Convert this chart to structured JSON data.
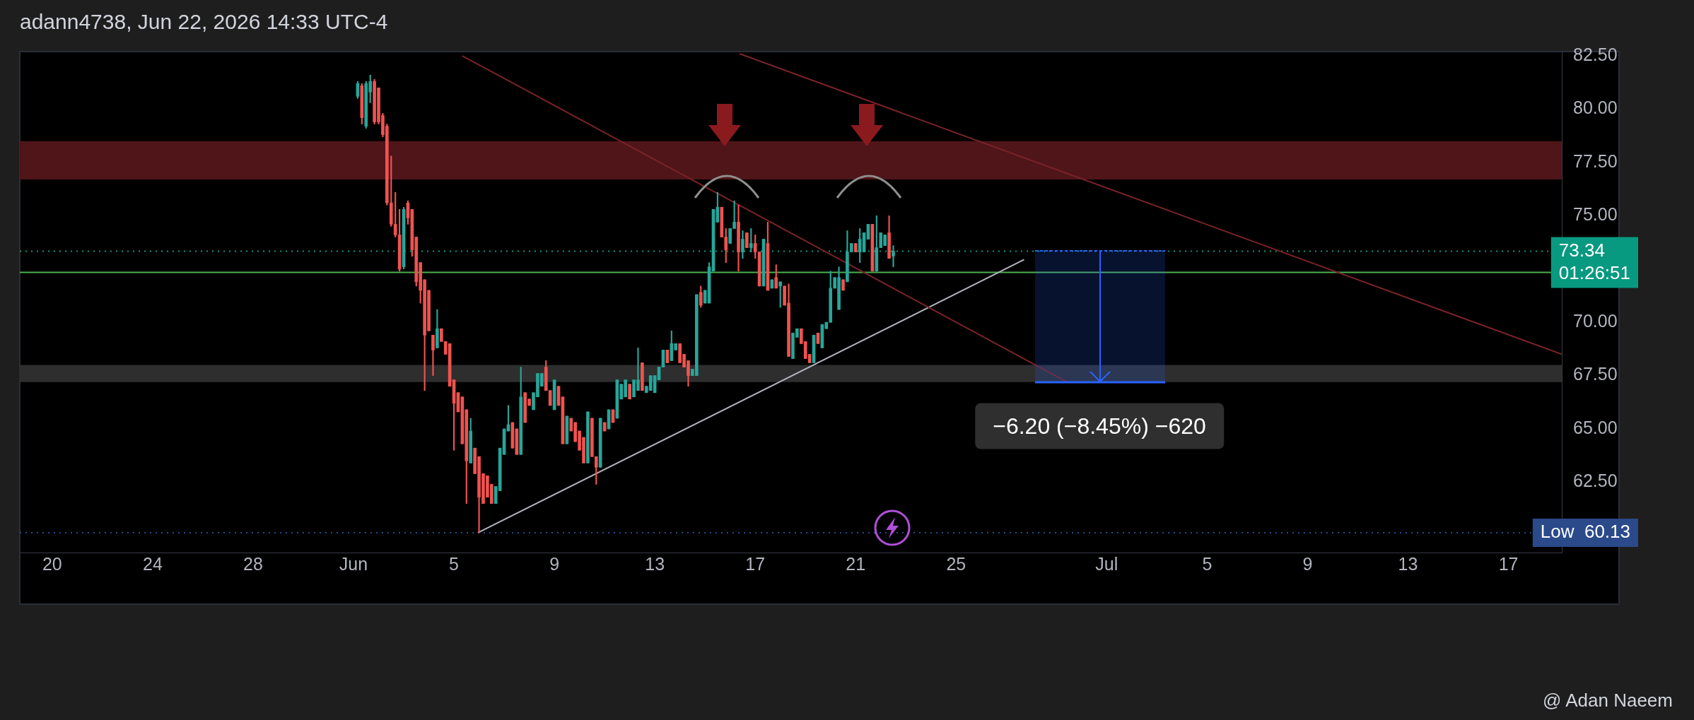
{
  "chart_data": {
    "type": "candlestick",
    "title": "adann4738, Jun 22, 2026 14:33 UTC-4",
    "xlim": [
      "2026-05-18T17:00",
      "2026-07-19T03:00"
    ],
    "xticks": [
      {
        "value": "2026-05-20",
        "label": "20"
      },
      {
        "value": "2026-05-24",
        "label": "24"
      },
      {
        "value": "2026-05-28",
        "label": "28"
      },
      {
        "value": "2026-06-01",
        "label": "Jun"
      },
      {
        "value": "2026-06-05",
        "label": "5"
      },
      {
        "value": "2026-06-09",
        "label": "9"
      },
      {
        "value": "2026-06-13",
        "label": "13"
      },
      {
        "value": "2026-06-17",
        "label": "17"
      },
      {
        "value": "2026-06-21",
        "label": "21"
      },
      {
        "value": "2026-06-25",
        "label": "25"
      },
      {
        "value": "2026-07-01",
        "label": "Jul"
      },
      {
        "value": "2026-07-05",
        "label": "5"
      },
      {
        "value": "2026-07-09",
        "label": "9"
      },
      {
        "value": "2026-07-13",
        "label": "13"
      },
      {
        "value": "2026-07-17",
        "label": "17"
      }
    ],
    "ylim": [
      59.2,
      82.7
    ],
    "yticks": [
      {
        "value": 62.5,
        "label": "62.50"
      },
      {
        "value": 65,
        "label": "65.00"
      },
      {
        "value": 67.5,
        "label": "67.50"
      },
      {
        "value": 70,
        "label": "70.00"
      },
      {
        "value": 75,
        "label": "75.00"
      },
      {
        "value": 77.5,
        "label": "77.50"
      },
      {
        "value": 80,
        "label": "80.00"
      },
      {
        "value": 82.5,
        "label": "82.50"
      }
    ],
    "bands": [
      {
        "axis": "y",
        "from": 76.7,
        "to": 78.5,
        "color": "#4f1519"
      },
      {
        "axis": "y",
        "from": 67.2,
        "to": 68.0,
        "color": "#2e2e2e"
      }
    ],
    "ref_lines": [
      {
        "axis": "y",
        "value": 73.34,
        "label": "73.34\n01:26:51",
        "color": "#089981",
        "line_style": "dotted"
      },
      {
        "axis": "y",
        "value": 72.34,
        "color": "#4caf50",
        "line_style": "solid"
      },
      {
        "axis": "y",
        "value": 60.13,
        "label": "Low  60.13",
        "color": "#2a4a8a",
        "line_style": "dotted"
      }
    ],
    "annotations": [
      "−6.20 (−8.45%) −620",
      "@ Adan Naeem"
    ],
    "series": [
      {
        "type": "line",
        "x": [
          "2026-06-05T08:00",
          "2026-06-29T10:00"
        ],
        "values": [
          82.5,
          67.2
        ],
        "color": "#7a2328"
      },
      {
        "type": "line",
        "x": [
          "2026-06-16T09:00",
          "2026-07-19T03:00"
        ],
        "values": [
          82.6,
          68.5
        ],
        "color": "#7a2328"
      },
      {
        "type": "line",
        "x": [
          "2026-06-05T23:00",
          "2026-06-27T17:00"
        ],
        "values": [
          60.13,
          72.94
        ],
        "color": "#b2b5be"
      },
      {
        "type": "candlestick",
        "x": [
          "2026-06-01T04:00",
          "2026-06-01T08:00",
          "2026-06-01T12:00",
          "2026-06-01T16:00",
          "2026-06-01T20:00",
          "2026-06-02T00:00",
          "2026-06-02T04:00",
          "2026-06-02T08:00",
          "2026-06-02T12:00",
          "2026-06-02T16:00",
          "2026-06-02T20:00",
          "2026-06-03T00:00",
          "2026-06-03T04:00",
          "2026-06-03T08:00",
          "2026-06-03T12:00",
          "2026-06-03T16:00",
          "2026-06-03T20:00",
          "2026-06-04T00:00",
          "2026-06-04T04:00",
          "2026-06-04T08:00",
          "2026-06-04T12:00",
          "2026-06-04T16:00",
          "2026-06-04T20:00",
          "2026-06-05T00:00",
          "2026-06-05T04:00",
          "2026-06-05T08:00",
          "2026-06-05T12:00",
          "2026-06-05T16:00",
          "2026-06-05T20:00",
          "2026-06-06T00:00",
          "2026-06-06T04:00",
          "2026-06-06T08:00",
          "2026-06-06T12:00",
          "2026-06-06T16:00",
          "2026-06-06T20:00",
          "2026-06-07T00:00",
          "2026-06-07T04:00",
          "2026-06-07T08:00",
          "2026-06-07T12:00",
          "2026-06-07T16:00",
          "2026-06-07T20:00",
          "2026-06-08T00:00",
          "2026-06-08T04:00",
          "2026-06-08T08:00",
          "2026-06-08T12:00",
          "2026-06-08T16:00",
          "2026-06-08T20:00",
          "2026-06-09T00:00",
          "2026-06-09T04:00",
          "2026-06-09T08:00",
          "2026-06-09T12:00",
          "2026-06-09T16:00",
          "2026-06-09T20:00",
          "2026-06-10T00:00",
          "2026-06-10T04:00",
          "2026-06-10T08:00",
          "2026-06-10T12:00",
          "2026-06-10T16:00",
          "2026-06-10T20:00",
          "2026-06-11T00:00",
          "2026-06-11T04:00",
          "2026-06-11T08:00",
          "2026-06-11T12:00",
          "2026-06-11T16:00",
          "2026-06-11T20:00",
          "2026-06-12T00:00",
          "2026-06-12T04:00",
          "2026-06-12T08:00",
          "2026-06-12T12:00",
          "2026-06-12T16:00",
          "2026-06-12T20:00",
          "2026-06-13T00:00",
          "2026-06-13T04:00",
          "2026-06-13T08:00",
          "2026-06-13T12:00",
          "2026-06-13T16:00",
          "2026-06-13T20:00",
          "2026-06-14T00:00",
          "2026-06-14T04:00",
          "2026-06-14T08:00",
          "2026-06-14T12:00",
          "2026-06-14T16:00",
          "2026-06-14T20:00",
          "2026-06-15T00:00",
          "2026-06-15T04:00",
          "2026-06-15T08:00",
          "2026-06-15T12:00",
          "2026-06-15T16:00",
          "2026-06-15T20:00",
          "2026-06-16T00:00",
          "2026-06-16T04:00",
          "2026-06-16T08:00",
          "2026-06-16T12:00",
          "2026-06-16T16:00",
          "2026-06-16T20:00",
          "2026-06-17T00:00",
          "2026-06-17T04:00",
          "2026-06-17T08:00",
          "2026-06-17T12:00",
          "2026-06-17T16:00",
          "2026-06-17T20:00",
          "2026-06-18T00:00",
          "2026-06-18T04:00",
          "2026-06-18T08:00",
          "2026-06-18T12:00",
          "2026-06-18T16:00",
          "2026-06-18T20:00",
          "2026-06-19T00:00",
          "2026-06-19T04:00",
          "2026-06-19T08:00",
          "2026-06-19T12:00",
          "2026-06-19T16:00",
          "2026-06-19T20:00",
          "2026-06-20T00:00",
          "2026-06-20T04:00",
          "2026-06-20T08:00",
          "2026-06-20T12:00",
          "2026-06-20T16:00",
          "2026-06-20T20:00",
          "2026-06-21T00:00",
          "2026-06-21T04:00",
          "2026-06-21T08:00",
          "2026-06-21T12:00",
          "2026-06-21T16:00",
          "2026-06-21T20:00",
          "2026-06-22T00:00",
          "2026-06-22T04:00",
          "2026-06-22T08:00",
          "2026-06-22T12:00"
        ],
        "ohlc": [
          [
            80.6,
            81.3,
            80.5,
            81.2
          ],
          [
            81.1,
            81.2,
            79.3,
            79.6
          ],
          [
            79.2,
            81.3,
            79.1,
            81.2
          ],
          [
            80.8,
            81.6,
            80.3,
            81.3
          ],
          [
            81.3,
            81.4,
            79.3,
            79.4
          ],
          [
            81.0,
            81.0,
            79.3,
            79.4
          ],
          [
            79.7,
            79.8,
            78.7,
            78.8
          ],
          [
            79.2,
            79.3,
            75.5,
            75.6
          ],
          [
            75.6,
            77.8,
            74.5,
            74.6
          ],
          [
            74.6,
            76.1,
            74.0,
            74.1
          ],
          [
            74.1,
            75.3,
            72.4,
            72.5
          ],
          [
            72.6,
            75.4,
            72.5,
            75.3
          ],
          [
            75.6,
            75.7,
            74.6,
            74.9
          ],
          [
            75.3,
            75.3,
            73.1,
            73.4
          ],
          [
            74.0,
            74.0,
            71.7,
            71.9
          ],
          [
            72.8,
            72.8,
            70.9,
            71.5
          ],
          [
            72.0,
            72.0,
            66.8,
            69.4
          ],
          [
            71.5,
            71.5,
            69.6,
            69.6
          ],
          [
            69.4,
            69.4,
            67.5,
            68.7
          ],
          [
            68.8,
            70.6,
            68.8,
            69.7
          ],
          [
            69.7,
            69.7,
            69.1,
            69.1
          ],
          [
            69.1,
            69.1,
            68.5,
            68.5
          ],
          [
            69.0,
            69.0,
            67.0,
            67.0
          ],
          [
            67.3,
            67.3,
            64.0,
            66.2
          ],
          [
            66.7,
            66.7,
            65.8,
            65.8
          ],
          [
            66.5,
            66.5,
            64.3,
            64.3
          ],
          [
            65.9,
            65.9,
            61.5,
            63.5
          ],
          [
            63.4,
            65.5,
            63.4,
            64.9
          ],
          [
            64.1,
            64.1,
            62.9,
            62.9
          ],
          [
            63.7,
            63.7,
            60.13,
            61.8
          ],
          [
            62.9,
            62.9,
            61.5,
            61.5
          ],
          [
            62.8,
            62.8,
            61.8,
            61.8
          ],
          [
            62.4,
            62.4,
            61.5,
            61.5
          ],
          [
            61.5,
            62.3,
            61.5,
            62.3
          ],
          [
            62.1,
            64.1,
            62.1,
            64.1
          ],
          [
            63.8,
            65.0,
            63.8,
            65.0
          ],
          [
            64.9,
            66.1,
            64.9,
            65.2
          ],
          [
            65.3,
            65.3,
            64.1,
            64.1
          ],
          [
            65.0,
            65.0,
            63.8,
            63.8
          ],
          [
            63.8,
            67.9,
            63.8,
            66.5
          ],
          [
            66.7,
            66.7,
            65.3,
            65.3
          ],
          [
            66.4,
            66.4,
            66.1,
            66.1
          ],
          [
            65.9,
            66.7,
            65.9,
            66.7
          ],
          [
            66.5,
            67.6,
            66.5,
            67.6
          ],
          [
            67.0,
            67.6,
            67.0,
            67.6
          ],
          [
            67.9,
            68.2,
            66.8,
            66.8
          ],
          [
            66.8,
            66.8,
            66.1,
            66.1
          ],
          [
            65.9,
            67.3,
            65.9,
            67.3
          ],
          [
            67.0,
            67.0,
            66.1,
            66.1
          ],
          [
            66.5,
            66.5,
            64.3,
            64.3
          ],
          [
            64.3,
            65.6,
            64.3,
            65.6
          ],
          [
            65.5,
            65.5,
            64.9,
            64.9
          ],
          [
            65.3,
            65.3,
            64.4,
            64.4
          ],
          [
            64.9,
            64.9,
            64.0,
            64.0
          ],
          [
            64.6,
            64.6,
            63.4,
            63.4
          ],
          [
            63.4,
            65.8,
            63.4,
            65.8
          ],
          [
            65.5,
            65.5,
            63.7,
            63.7
          ],
          [
            63.7,
            63.7,
            62.4,
            63.2
          ],
          [
            63.2,
            65.5,
            63.2,
            65.5
          ],
          [
            65.3,
            65.3,
            64.9,
            64.9
          ],
          [
            65.0,
            65.9,
            65.0,
            65.9
          ],
          [
            65.9,
            65.9,
            65.3,
            65.3
          ],
          [
            65.5,
            67.3,
            65.5,
            67.3
          ],
          [
            66.4,
            67.1,
            66.4,
            67.1
          ],
          [
            66.5,
            67.3,
            66.5,
            67.3
          ],
          [
            67.1,
            67.1,
            66.4,
            66.4
          ],
          [
            66.5,
            67.3,
            66.5,
            67.3
          ],
          [
            66.8,
            68.8,
            66.8,
            67.3
          ],
          [
            68.1,
            68.1,
            66.8,
            66.8
          ],
          [
            66.7,
            67.0,
            66.7,
            67.0
          ],
          [
            66.8,
            67.5,
            66.8,
            67.5
          ],
          [
            66.7,
            67.5,
            66.7,
            67.5
          ],
          [
            67.3,
            67.9,
            67.3,
            67.9
          ],
          [
            67.9,
            68.7,
            67.9,
            68.7
          ],
          [
            68.7,
            68.7,
            68.1,
            68.1
          ],
          [
            68.2,
            69.6,
            68.2,
            69.0
          ],
          [
            68.7,
            69.0,
            68.7,
            69.0
          ],
          [
            69.0,
            69.0,
            68.1,
            68.1
          ],
          [
            68.5,
            68.5,
            67.9,
            67.9
          ],
          [
            68.2,
            68.2,
            67.0,
            67.5
          ],
          [
            67.5,
            67.8,
            67.5,
            67.8
          ],
          [
            67.5,
            71.3,
            67.5,
            71.3
          ],
          [
            71.4,
            71.7,
            70.7,
            70.8
          ],
          [
            70.9,
            71.5,
            70.9,
            71.5
          ],
          [
            70.9,
            72.8,
            70.9,
            72.6
          ],
          [
            72.4,
            75.3,
            72.4,
            75.3
          ],
          [
            74.7,
            76.1,
            74.7,
            75.4
          ],
          [
            75.4,
            75.4,
            74.0,
            74.0
          ],
          [
            74.0,
            74.4,
            72.8,
            73.4
          ],
          [
            73.7,
            74.4,
            73.7,
            74.4
          ],
          [
            74.4,
            75.7,
            74.4,
            74.7
          ],
          [
            74.7,
            75.5,
            72.4,
            73.3
          ],
          [
            73.3,
            74.3,
            73.0,
            73.9
          ],
          [
            74.2,
            74.2,
            73.5,
            73.5
          ],
          [
            73.5,
            74.4,
            73.3,
            73.7
          ],
          [
            73.7,
            74.1,
            73.0,
            73.3
          ],
          [
            73.3,
            73.3,
            71.7,
            71.7
          ],
          [
            71.7,
            73.9,
            71.7,
            73.9
          ],
          [
            73.7,
            74.7,
            71.5,
            71.5
          ],
          [
            71.6,
            72.0,
            71.6,
            72.0
          ],
          [
            72.1,
            72.7,
            71.6,
            71.6
          ],
          [
            71.7,
            71.9,
            70.7,
            71.9
          ],
          [
            71.7,
            71.7,
            70.8,
            70.8
          ],
          [
            70.9,
            71.8,
            68.4,
            68.4
          ],
          [
            68.3,
            69.5,
            68.3,
            69.5
          ],
          [
            69.3,
            69.7,
            69.3,
            69.7
          ],
          [
            69.7,
            69.7,
            69.0,
            69.0
          ],
          [
            69.1,
            69.1,
            68.3,
            68.3
          ],
          [
            68.5,
            68.5,
            68.1,
            68.1
          ],
          [
            68.1,
            69.4,
            68.1,
            69.4
          ],
          [
            69.5,
            69.5,
            69.0,
            69.0
          ],
          [
            68.8,
            69.9,
            68.8,
            69.9
          ],
          [
            69.7,
            70.0,
            69.7,
            70.0
          ],
          [
            70.0,
            72.4,
            70.0,
            71.6
          ],
          [
            71.6,
            72.1,
            71.6,
            72.1
          ],
          [
            70.6,
            72.6,
            70.6,
            72.1
          ],
          [
            72.0,
            72.0,
            71.5,
            71.5
          ],
          [
            71.9,
            74.3,
            71.9,
            73.3
          ],
          [
            73.3,
            73.7,
            73.3,
            73.7
          ],
          [
            73.7,
            73.7,
            73.3,
            73.3
          ],
          [
            73.3,
            74.4,
            72.8,
            73.9
          ],
          [
            73.3,
            74.2,
            73.3,
            74.2
          ],
          [
            73.9,
            74.6,
            73.9,
            74.6
          ],
          [
            74.6,
            74.6,
            72.4,
            72.4
          ],
          [
            72.4,
            75.0,
            72.4,
            73.5
          ],
          [
            73.5,
            74.2,
            73.5,
            74.2
          ],
          [
            73.6,
            74.1,
            73.6,
            74.1
          ],
          [
            74.2,
            75.0,
            73.0,
            73.0
          ],
          [
            73.1,
            73.6,
            72.6,
            73.34
          ]
        ],
        "colors": [
          "#26a69a",
          "#ef5350",
          "#26a69a",
          "#26a69a",
          "#ef5350",
          "#ef5350",
          "#ef5350",
          "#ef5350",
          "#ef5350",
          "#ef5350",
          "#ef5350",
          "#26a69a",
          "#ef5350",
          "#ef5350",
          "#ef5350",
          "#ef5350",
          "#ef5350",
          "#ef5350",
          "#ef5350",
          "#26a69a",
          "#ef5350",
          "#ef5350",
          "#ef5350",
          "#ef5350",
          "#ef5350",
          "#ef5350",
          "#ef5350",
          "#26a69a",
          "#ef5350",
          "#ef5350",
          "#ef5350",
          "#ef5350",
          "#ef5350",
          "#26a69a",
          "#26a69a",
          "#26a69a",
          "#26a69a",
          "#ef5350",
          "#ef5350",
          "#26a69a",
          "#ef5350",
          "#ef5350",
          "#26a69a",
          "#26a69a",
          "#26a69a",
          "#ef5350",
          "#ef5350",
          "#26a69a",
          "#ef5350",
          "#ef5350",
          "#26a69a",
          "#ef5350",
          "#ef5350",
          "#ef5350",
          "#ef5350",
          "#26a69a",
          "#ef5350",
          "#ef5350",
          "#26a69a",
          "#ef5350",
          "#26a69a",
          "#ef5350",
          "#26a69a",
          "#26a69a",
          "#26a69a",
          "#ef5350",
          "#26a69a",
          "#26a69a",
          "#ef5350",
          "#26a69a",
          "#26a69a",
          "#26a69a",
          "#26a69a",
          "#26a69a",
          "#ef5350",
          "#26a69a",
          "#26a69a",
          "#ef5350",
          "#ef5350",
          "#ef5350",
          "#26a69a",
          "#26a69a",
          "#ef5350",
          "#26a69a",
          "#26a69a",
          "#26a69a",
          "#26a69a",
          "#ef5350",
          "#ef5350",
          "#26a69a",
          "#26a69a",
          "#ef5350",
          "#26a69a",
          "#ef5350",
          "#26a69a",
          "#ef5350",
          "#ef5350",
          "#26a69a",
          "#ef5350",
          "#26a69a",
          "#ef5350",
          "#26a69a",
          "#ef5350",
          "#ef5350",
          "#26a69a",
          "#26a69a",
          "#ef5350",
          "#ef5350",
          "#ef5350",
          "#26a69a",
          "#ef5350",
          "#26a69a",
          "#26a69a",
          "#26a69a",
          "#26a69a",
          "#26a69a",
          "#ef5350",
          "#26a69a",
          "#26a69a",
          "#ef5350",
          "#26a69a",
          "#26a69a",
          "#26a69a",
          "#ef5350",
          "#26a69a",
          "#26a69a",
          "#26a69a",
          "#ef5350",
          "#26a69a"
        ]
      }
    ]
  }
}
